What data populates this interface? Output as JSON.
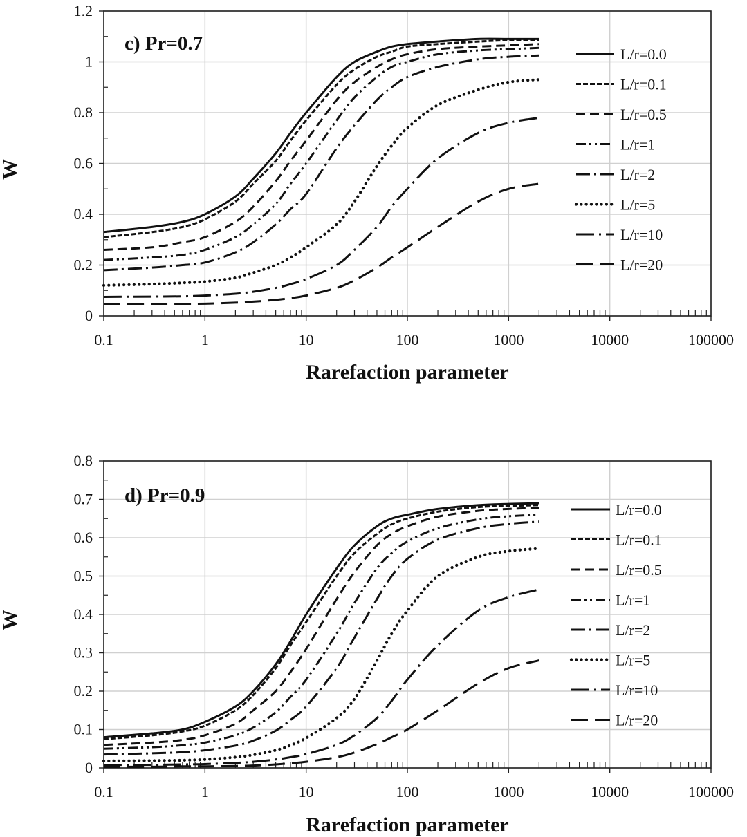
{
  "chart_data": [
    {
      "type": "line",
      "panel_label": "c) Pr=0.7",
      "xlabel": "Rarefaction parameter",
      "ylabel": "W",
      "xscale": "log",
      "xlim": [
        0.1,
        100000
      ],
      "ylim": [
        0,
        1.2
      ],
      "xticks": [
        0.1,
        1,
        10,
        100,
        1000,
        10000,
        100000
      ],
      "xtick_labels": [
        "0.1",
        "1",
        "10",
        "100",
        "1000",
        "10000",
        "100000"
      ],
      "yticks": [
        0,
        0.2,
        0.4,
        0.6,
        0.8,
        1,
        1.2
      ],
      "ytick_labels": [
        "0",
        "0.2",
        "0.4",
        "0.6",
        "0.8",
        "1",
        "1.2"
      ],
      "grid": true,
      "legend_position": "right",
      "series": [
        {
          "name": "L/r=0.0",
          "style": "solid",
          "x": [
            0.1,
            0.3,
            0.6,
            1,
            2,
            3,
            5,
            7,
            10,
            20,
            30,
            50,
            70,
            100,
            200,
            500,
            1000,
            2000
          ],
          "y": [
            0.33,
            0.35,
            0.37,
            0.4,
            0.47,
            0.54,
            0.64,
            0.72,
            0.8,
            0.94,
            1.0,
            1.04,
            1.06,
            1.07,
            1.08,
            1.09,
            1.09,
            1.09
          ]
        },
        {
          "name": "L/r=0.1",
          "style": "dashed-short",
          "x": [
            0.1,
            0.3,
            0.6,
            1,
            2,
            3,
            5,
            7,
            10,
            20,
            30,
            50,
            70,
            100,
            200,
            500,
            1000,
            2000
          ],
          "y": [
            0.31,
            0.33,
            0.35,
            0.38,
            0.45,
            0.52,
            0.61,
            0.69,
            0.77,
            0.91,
            0.97,
            1.02,
            1.04,
            1.06,
            1.07,
            1.08,
            1.085,
            1.085
          ]
        },
        {
          "name": "L/r=0.5",
          "style": "dashed-medium",
          "x": [
            0.1,
            0.3,
            0.6,
            1,
            2,
            3,
            5,
            7,
            10,
            20,
            30,
            50,
            70,
            100,
            200,
            500,
            1000,
            2000
          ],
          "y": [
            0.26,
            0.27,
            0.29,
            0.31,
            0.37,
            0.43,
            0.53,
            0.61,
            0.69,
            0.85,
            0.92,
            0.98,
            1.01,
            1.03,
            1.05,
            1.06,
            1.065,
            1.07
          ]
        },
        {
          "name": "L/r=1",
          "style": "dash-dot-dot",
          "x": [
            0.1,
            0.3,
            0.6,
            1,
            2,
            3,
            5,
            7,
            10,
            20,
            30,
            50,
            70,
            100,
            200,
            500,
            1000,
            2000
          ],
          "y": [
            0.22,
            0.23,
            0.24,
            0.26,
            0.31,
            0.36,
            0.44,
            0.52,
            0.6,
            0.77,
            0.86,
            0.94,
            0.98,
            1.0,
            1.03,
            1.045,
            1.05,
            1.055
          ]
        },
        {
          "name": "L/r=2",
          "style": "long-dash-dot",
          "x": [
            0.1,
            0.3,
            0.6,
            1,
            2,
            3,
            5,
            7,
            10,
            20,
            30,
            50,
            70,
            100,
            200,
            500,
            1000,
            2000
          ],
          "y": [
            0.18,
            0.19,
            0.2,
            0.21,
            0.25,
            0.29,
            0.36,
            0.42,
            0.48,
            0.66,
            0.75,
            0.85,
            0.9,
            0.94,
            0.98,
            1.01,
            1.02,
            1.025
          ]
        },
        {
          "name": "L/r=5",
          "style": "dotted",
          "x": [
            0.1,
            0.3,
            0.6,
            1,
            2,
            3,
            5,
            7,
            10,
            20,
            30,
            50,
            70,
            100,
            200,
            500,
            1000,
            2000
          ],
          "y": [
            0.12,
            0.125,
            0.13,
            0.135,
            0.15,
            0.17,
            0.2,
            0.23,
            0.27,
            0.36,
            0.45,
            0.59,
            0.67,
            0.74,
            0.83,
            0.89,
            0.92,
            0.93
          ]
        },
        {
          "name": "L/r=10",
          "style": "longer-dash-dot",
          "x": [
            0.1,
            0.3,
            0.6,
            1,
            2,
            3,
            5,
            7,
            10,
            20,
            30,
            50,
            70,
            100,
            200,
            500,
            1000,
            2000
          ],
          "y": [
            0.075,
            0.076,
            0.077,
            0.08,
            0.087,
            0.095,
            0.11,
            0.125,
            0.145,
            0.2,
            0.26,
            0.35,
            0.43,
            0.5,
            0.62,
            0.72,
            0.76,
            0.78
          ]
        },
        {
          "name": "L/r=20",
          "style": "long-dash",
          "x": [
            0.1,
            0.3,
            0.6,
            1,
            2,
            3,
            5,
            7,
            10,
            20,
            30,
            50,
            70,
            100,
            200,
            500,
            1000,
            2000
          ],
          "y": [
            0.045,
            0.046,
            0.047,
            0.048,
            0.052,
            0.056,
            0.063,
            0.07,
            0.08,
            0.11,
            0.14,
            0.19,
            0.23,
            0.27,
            0.35,
            0.45,
            0.5,
            0.52
          ]
        }
      ]
    },
    {
      "type": "line",
      "panel_label": "d) Pr=0.9",
      "xlabel": "Rarefaction parameter",
      "ylabel": "W",
      "xscale": "log",
      "xlim": [
        0.1,
        100000
      ],
      "ylim": [
        0,
        0.8
      ],
      "xticks": [
        0.1,
        1,
        10,
        100,
        1000,
        10000,
        100000
      ],
      "xtick_labels": [
        "0.1",
        "1",
        "10",
        "100",
        "1000",
        "10000",
        "100000"
      ],
      "yticks": [
        0,
        0.1,
        0.2,
        0.3,
        0.4,
        0.5,
        0.6,
        0.7,
        0.8
      ],
      "ytick_labels": [
        "0",
        "0.1",
        "0.2",
        "0.3",
        "0.4",
        "0.5",
        "0.6",
        "0.7",
        "0.8"
      ],
      "grid": true,
      "legend_position": "right",
      "series": [
        {
          "name": "L/r=0.0",
          "style": "solid",
          "x": [
            0.1,
            0.3,
            0.6,
            1,
            2,
            3,
            5,
            7,
            10,
            20,
            30,
            50,
            70,
            100,
            200,
            500,
            1000,
            2000
          ],
          "y": [
            0.08,
            0.09,
            0.1,
            0.12,
            0.16,
            0.2,
            0.27,
            0.33,
            0.4,
            0.52,
            0.58,
            0.63,
            0.65,
            0.66,
            0.675,
            0.685,
            0.688,
            0.69
          ]
        },
        {
          "name": "L/r=0.1",
          "style": "dashed-short",
          "x": [
            0.1,
            0.3,
            0.6,
            1,
            2,
            3,
            5,
            7,
            10,
            20,
            30,
            50,
            70,
            100,
            200,
            500,
            1000,
            2000
          ],
          "y": [
            0.075,
            0.085,
            0.095,
            0.11,
            0.15,
            0.19,
            0.26,
            0.32,
            0.38,
            0.5,
            0.56,
            0.61,
            0.635,
            0.65,
            0.668,
            0.68,
            0.683,
            0.685
          ]
        },
        {
          "name": "L/r=0.5",
          "style": "dashed-medium",
          "x": [
            0.1,
            0.3,
            0.6,
            1,
            2,
            3,
            5,
            7,
            10,
            20,
            30,
            50,
            70,
            100,
            200,
            500,
            1000,
            2000
          ],
          "y": [
            0.06,
            0.066,
            0.073,
            0.085,
            0.115,
            0.15,
            0.2,
            0.25,
            0.31,
            0.44,
            0.51,
            0.58,
            0.61,
            0.63,
            0.655,
            0.67,
            0.675,
            0.678
          ]
        },
        {
          "name": "L/r=1",
          "style": "dash-dot-dot",
          "x": [
            0.1,
            0.3,
            0.6,
            1,
            2,
            3,
            5,
            7,
            10,
            20,
            30,
            50,
            70,
            100,
            200,
            500,
            1000,
            2000
          ],
          "y": [
            0.05,
            0.054,
            0.059,
            0.066,
            0.085,
            0.105,
            0.145,
            0.185,
            0.23,
            0.35,
            0.43,
            0.52,
            0.56,
            0.59,
            0.625,
            0.648,
            0.656,
            0.66
          ]
        },
        {
          "name": "L/r=2",
          "style": "long-dash-dot",
          "x": [
            0.1,
            0.3,
            0.6,
            1,
            2,
            3,
            5,
            7,
            10,
            20,
            30,
            50,
            70,
            100,
            200,
            500,
            1000,
            2000
          ],
          "y": [
            0.035,
            0.038,
            0.041,
            0.046,
            0.058,
            0.071,
            0.097,
            0.125,
            0.16,
            0.26,
            0.34,
            0.44,
            0.5,
            0.545,
            0.595,
            0.625,
            0.636,
            0.642
          ]
        },
        {
          "name": "L/r=5",
          "style": "dotted",
          "x": [
            0.1,
            0.3,
            0.6,
            1,
            2,
            3,
            5,
            7,
            10,
            20,
            30,
            50,
            70,
            100,
            200,
            500,
            1000,
            2000
          ],
          "y": [
            0.018,
            0.019,
            0.02,
            0.022,
            0.028,
            0.034,
            0.046,
            0.059,
            0.078,
            0.13,
            0.18,
            0.28,
            0.35,
            0.41,
            0.5,
            0.55,
            0.565,
            0.572
          ]
        },
        {
          "name": "L/r=10",
          "style": "longer-dash-dot",
          "x": [
            0.1,
            0.3,
            0.6,
            1,
            2,
            3,
            5,
            7,
            10,
            20,
            30,
            50,
            70,
            100,
            200,
            500,
            1000,
            2000
          ],
          "y": [
            0.008,
            0.008,
            0.009,
            0.01,
            0.013,
            0.016,
            0.022,
            0.028,
            0.036,
            0.06,
            0.085,
            0.13,
            0.175,
            0.23,
            0.32,
            0.41,
            0.445,
            0.465
          ]
        },
        {
          "name": "L/r=20",
          "style": "long-dash",
          "x": [
            0.1,
            0.3,
            0.6,
            1,
            2,
            3,
            5,
            7,
            10,
            20,
            30,
            50,
            70,
            100,
            200,
            500,
            1000,
            2000
          ],
          "y": [
            0.003,
            0.003,
            0.004,
            0.004,
            0.005,
            0.006,
            0.009,
            0.012,
            0.016,
            0.028,
            0.04,
            0.062,
            0.08,
            0.1,
            0.15,
            0.22,
            0.26,
            0.28
          ]
        }
      ]
    }
  ]
}
